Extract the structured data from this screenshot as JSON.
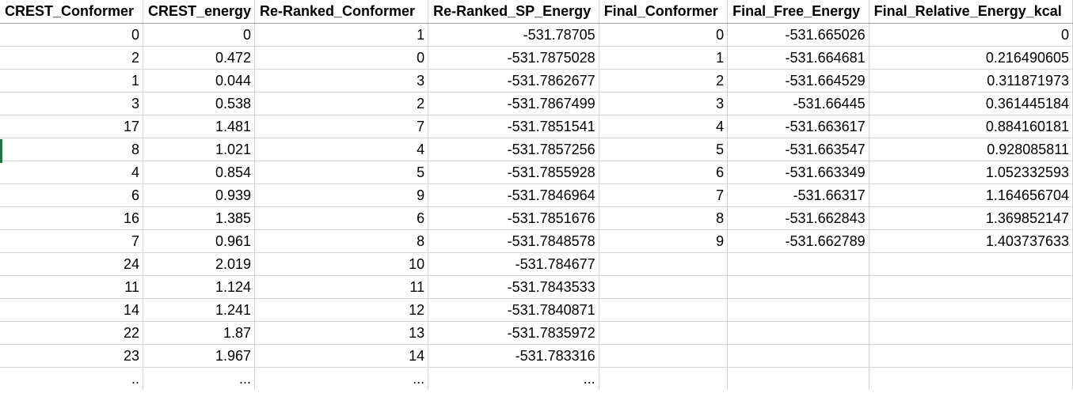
{
  "columns": [
    "CREST_Conformer",
    "CREST_energy",
    "Re-Ranked_Conformer",
    "Re-Ranked_SP_Energy",
    "Final_Conformer",
    "Final_Free_Energy",
    "Final_Relative_Energy_kcal"
  ],
  "rows": [
    [
      "0",
      "0",
      "1",
      "-531.78705",
      "0",
      "-531.665026",
      "0"
    ],
    [
      "2",
      "0.472",
      "0",
      "-531.7875028",
      "1",
      "-531.664681",
      "0.216490605"
    ],
    [
      "1",
      "0.044",
      "3",
      "-531.7862677",
      "2",
      "-531.664529",
      "0.311871973"
    ],
    [
      "3",
      "0.538",
      "2",
      "-531.7867499",
      "3",
      "-531.66445",
      "0.361445184"
    ],
    [
      "17",
      "1.481",
      "7",
      "-531.7851541",
      "4",
      "-531.663617",
      "0.884160181"
    ],
    [
      "8",
      "1.021",
      "4",
      "-531.7857256",
      "5",
      "-531.663547",
      "0.928085811"
    ],
    [
      "4",
      "0.854",
      "5",
      "-531.7855928",
      "6",
      "-531.663349",
      "1.052332593"
    ],
    [
      "6",
      "0.939",
      "9",
      "-531.7846964",
      "7",
      "-531.66317",
      "1.164656704"
    ],
    [
      "16",
      "1.385",
      "6",
      "-531.7851676",
      "8",
      "-531.662843",
      "1.369852147"
    ],
    [
      "7",
      "0.961",
      "8",
      "-531.7848578",
      "9",
      "-531.662789",
      "1.403737633"
    ],
    [
      "24",
      "2.019",
      "10",
      "-531.784677",
      "",
      "",
      ""
    ],
    [
      "11",
      "1.124",
      "11",
      "-531.7843533",
      "",
      "",
      ""
    ],
    [
      "14",
      "1.241",
      "12",
      "-531.7840871",
      "",
      "",
      ""
    ],
    [
      "22",
      "1.87",
      "13",
      "-531.7835972",
      "",
      "",
      ""
    ],
    [
      "23",
      "1.967",
      "14",
      "-531.783316",
      "",
      "",
      ""
    ],
    [
      "..",
      "...",
      "...",
      "...",
      "",
      "",
      ""
    ]
  ],
  "selection_color": "#217346",
  "gridline_color": "#d4d4d4"
}
